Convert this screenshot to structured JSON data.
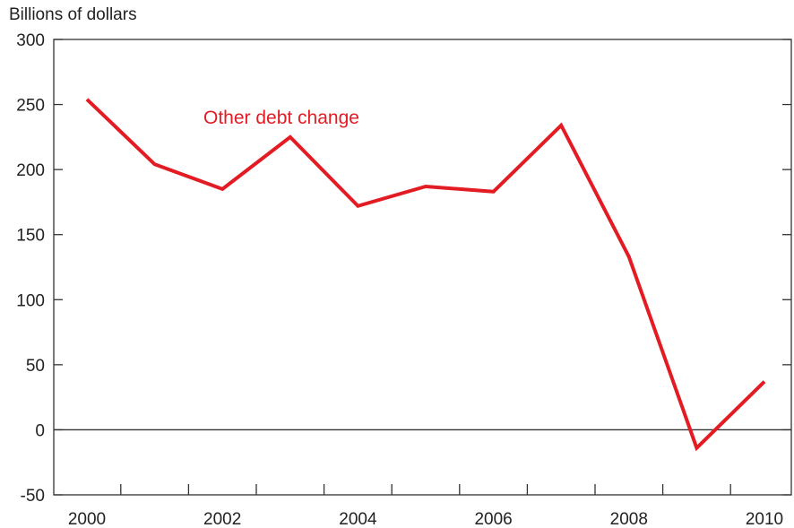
{
  "chart_data": {
    "type": "line",
    "title": "",
    "ylabel": "Billions of dollars",
    "xlabel": "",
    "ylim": [
      -50,
      300
    ],
    "y_ticks": [
      -50,
      0,
      50,
      100,
      150,
      200,
      250,
      300
    ],
    "x_tick_labels": [
      "2000",
      "2002",
      "2004",
      "2006",
      "2008",
      "2010"
    ],
    "grid": false,
    "zero_line": true,
    "series": [
      {
        "name": "Other debt change",
        "color": "#e31b23",
        "x": [
          2000,
          2001,
          2002,
          2003,
          2004,
          2005,
          2006,
          2007,
          2008,
          2009,
          2010
        ],
        "values": [
          254,
          204,
          185,
          225,
          172,
          187,
          183,
          234,
          133,
          -14,
          37
        ]
      }
    ]
  }
}
